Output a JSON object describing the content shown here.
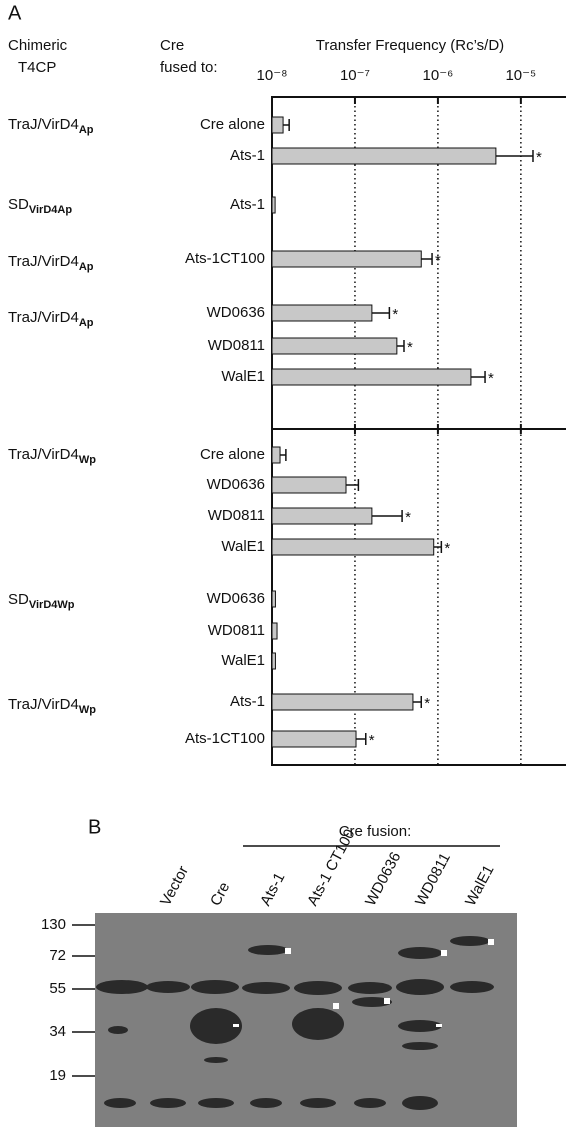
{
  "panel_a": {
    "label": "A",
    "t4cp_header": [
      "Chimeric",
      "T4CP"
    ],
    "cre_header": [
      "Cre",
      "fused to:"
    ]
  },
  "chart_data": {
    "type": "bar",
    "orientation": "horizontal",
    "x_label": "Transfer Frequency (Rc’s/D)",
    "xscale": "log",
    "xlim": [
      1e-08,
      3.5e-05
    ],
    "xticks": [
      {
        "value": 1e-08,
        "label": "10⁻⁸"
      },
      {
        "value": 1e-07,
        "label": "10⁻⁷"
      },
      {
        "value": 1e-06,
        "label": "10⁻⁶"
      },
      {
        "value": 1e-05,
        "label": "10⁻⁵"
      }
    ],
    "grid": true,
    "color": "#c8c8c8",
    "categories": [
      "Cre alone",
      "Ats-1",
      "Ats-1",
      "Ats-1CT100",
      "WD0636",
      "WD0811",
      "WalE1",
      "Cre alone",
      "WD0636",
      "WD0811",
      "WalE1",
      "WD0636",
      "WD0811",
      "WalE1",
      "Ats-1",
      "Ats-1CT100"
    ],
    "values": [
      1.36e-08,
      5e-06,
      1.09e-08,
      6.3e-07,
      1.6e-07,
      3.2e-07,
      2.5e-06,
      1.25e-08,
      7.8e-08,
      1.6e-07,
      8.9e-07,
      1.1e-08,
      1.15e-08,
      1.1e-08,
      5e-07,
      1.03e-07
    ],
    "errors": [
      2.5e-09,
      9e-06,
      null,
      2.2e-07,
      1e-07,
      7e-08,
      1.2e-06,
      2.2e-09,
      3.2e-08,
      2.1e-07,
      2.1e-07,
      null,
      null,
      null,
      1.3e-07,
      3.2e-08
    ],
    "annotations": [
      null,
      "*",
      null,
      "*",
      "*",
      "*",
      "*",
      null,
      null,
      "*",
      "*",
      null,
      null,
      null,
      "*",
      "*"
    ],
    "groups": [
      {
        "name": "TraJ/VirD4",
        "subscript": "Ap",
        "rows": [
          0,
          1
        ]
      },
      {
        "name": "SD",
        "subscript": "VirD4Ap",
        "rows": [
          2
        ]
      },
      {
        "name": "TraJ/VirD4",
        "subscript": "Ap",
        "rows": [
          3
        ]
      },
      {
        "name": "TraJ/VirD4",
        "subscript": "Ap",
        "rows": [
          4,
          5,
          6
        ]
      },
      {
        "name": "TraJ/VirD4",
        "subscript": "Wp",
        "rows": [
          7,
          8,
          9,
          10
        ]
      },
      {
        "name": "SD",
        "subscript": "VirD4Wp",
        "rows": [
          11,
          12,
          13
        ]
      },
      {
        "name": "TraJ/VirD4",
        "subscript": "Wp",
        "rows": [
          14,
          15
        ]
      }
    ]
  },
  "panel_b": {
    "label": "B",
    "fusion_header": "Cre fusion:",
    "lanes": [
      "Vector",
      "Cre",
      "Ats-1",
      "Ats-1 CT100",
      "WD0636",
      "WD0811",
      "WalE1"
    ],
    "markers": [
      "130",
      "72",
      "55",
      "34",
      "19"
    ]
  }
}
